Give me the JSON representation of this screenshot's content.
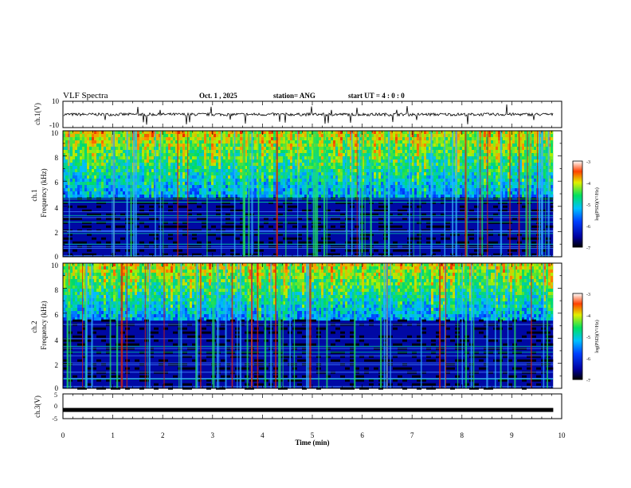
{
  "header": {
    "title": "VLF Spectra",
    "date": "Oct. 1 , 2025",
    "station": "station= ANG",
    "start": "start  UT =   4 : 0  : 0"
  },
  "chart_data": [
    {
      "type": "line",
      "name": "ch1-waveform",
      "ylabel": "ch.1(V)",
      "ylim": [
        -10,
        10
      ],
      "yticks": [
        "10",
        "-10"
      ],
      "baseline": 0,
      "color": "#000000"
    },
    {
      "type": "heatmap",
      "name": "ch1-spectrogram",
      "ylabel_top": "ch.1",
      "ylabel": "Frequency  (kHz)",
      "ylim": [
        0,
        10
      ],
      "yticks": [
        "0",
        "2",
        "4",
        "6",
        "8",
        "10"
      ],
      "colorbar": {
        "label": "log(PSD)(V²/Hz)",
        "range": [
          -7,
          -3
        ],
        "ticks": [
          "-3",
          "-4",
          "-5",
          "-6",
          "-7"
        ]
      },
      "noise_floor_kHz": 4.7
    },
    {
      "type": "heatmap",
      "name": "ch2-spectrogram",
      "ylabel_top": "ch.2",
      "ylabel": "Frequency  (kHz)",
      "ylim": [
        0,
        10
      ],
      "yticks": [
        "0",
        "2",
        "4",
        "6",
        "8",
        "10"
      ],
      "colorbar": {
        "label": "log(PSD)(V²/Hz)",
        "range": [
          -7,
          -3
        ],
        "ticks": [
          "-3",
          "-4",
          "-5",
          "-6",
          "-7"
        ]
      },
      "noise_floor_kHz": 5.5
    },
    {
      "type": "line",
      "name": "ch3-signal",
      "ylabel": "ch.3(V)",
      "ylim": [
        -5,
        5
      ],
      "yticks": [
        "5",
        "0",
        "-5"
      ],
      "constant_value": -1.5,
      "color": "#000000"
    }
  ],
  "xaxis": {
    "label": "Time  (min)",
    "range": [
      0,
      10
    ],
    "data_end": 9.83,
    "ticks": [
      "0",
      "1",
      "2",
      "3",
      "4",
      "5",
      "6",
      "7",
      "8",
      "9",
      "10"
    ]
  }
}
